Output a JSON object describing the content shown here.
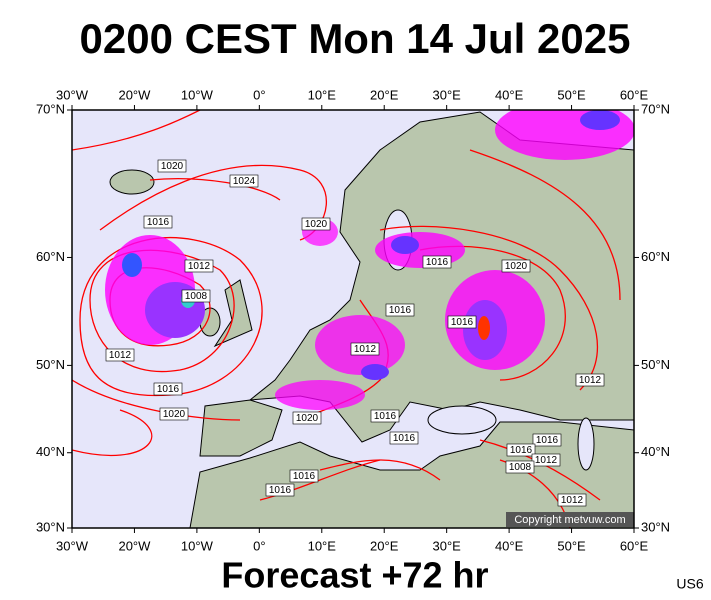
{
  "header": {
    "title": "0200 CEST Mon 14 Jul 2025"
  },
  "map": {
    "projection": "mercator",
    "lonlim": [
      -30,
      60
    ],
    "latlim": [
      30,
      70
    ],
    "lonticks": [
      {
        "value": -30,
        "label": "30°W"
      },
      {
        "value": -20,
        "label": "20°W"
      },
      {
        "value": -10,
        "label": "10°W"
      },
      {
        "value": 0,
        "label": "0°"
      },
      {
        "value": 10,
        "label": "10°E"
      },
      {
        "value": 20,
        "label": "20°E"
      },
      {
        "value": 30,
        "label": "30°E"
      },
      {
        "value": 40,
        "label": "40°E"
      },
      {
        "value": 50,
        "label": "50°E"
      },
      {
        "value": 60,
        "label": "60°E"
      }
    ],
    "latticks": [
      {
        "value": 70,
        "label": "70°N"
      },
      {
        "value": 60,
        "label": "60°N"
      },
      {
        "value": 50,
        "label": "50°N"
      },
      {
        "value": 40,
        "label": "40°N"
      },
      {
        "value": 30,
        "label": "30°N"
      }
    ],
    "isobar_labels": [
      1020,
      1024,
      1016,
      1020,
      1012,
      1008,
      1016,
      1020,
      1016,
      1016,
      1012,
      1012,
      1016,
      1020,
      1012,
      1020,
      1016,
      1016,
      1016,
      1016,
      1012,
      1008,
      1016,
      1016,
      1012
    ],
    "copyright": "Copyright metvuw.com"
  },
  "footer": {
    "forecast": "Forecast +72 hr",
    "code": "US6"
  }
}
